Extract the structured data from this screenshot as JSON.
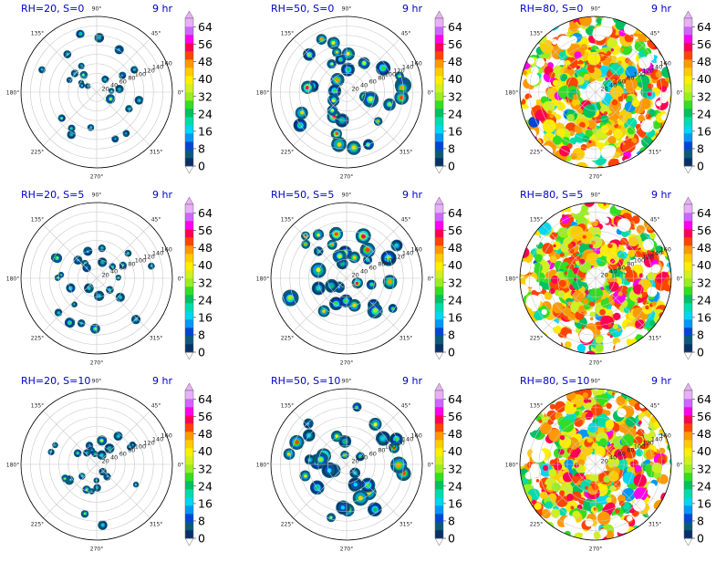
{
  "chart_data": {
    "type": "heatmap",
    "projection": "polar",
    "time_label": "9 hr",
    "angle_ticks": [
      "90°",
      "45°",
      "0°",
      "315°",
      "270°",
      "225°",
      "180°",
      "135°"
    ],
    "radial_ticks": [
      "20",
      "40",
      "60",
      "80",
      "100",
      "120",
      "140",
      "160"
    ],
    "rmax": 160,
    "colorbar": {
      "tick_labels": [
        "64",
        "56",
        "48",
        "40",
        "32",
        "24",
        "16",
        "8",
        "0"
      ],
      "levels": [
        0,
        4,
        8,
        12,
        16,
        20,
        24,
        28,
        32,
        36,
        40,
        44,
        48,
        52,
        56,
        60,
        64,
        68
      ],
      "colors": [
        "#08306b",
        "#0a5b78",
        "#0045d6",
        "#0098f5",
        "#00d7f0",
        "#00ddaa",
        "#00c060",
        "#33dd22",
        "#99ee22",
        "#d0f020",
        "#ffee00",
        "#ffcc00",
        "#ff9900",
        "#ff4400",
        "#ff0055",
        "#ff00ee",
        "#cc66ff",
        "#e8b0f8"
      ],
      "extend": "both"
    },
    "panels": [
      {
        "title": "RH=20, S=0",
        "rh": 20,
        "s": 0
      },
      {
        "title": "RH=50, S=0",
        "rh": 50,
        "s": 0
      },
      {
        "title": "RH=80, S=0",
        "rh": 80,
        "s": 0
      },
      {
        "title": "RH=20, S=5",
        "rh": 20,
        "s": 5
      },
      {
        "title": "RH=50, S=5",
        "rh": 50,
        "s": 5
      },
      {
        "title": "RH=80, S=5",
        "rh": 80,
        "s": 5
      },
      {
        "title": "RH=20, S=10",
        "rh": 20,
        "s": 10
      },
      {
        "title": "RH=50, S=10",
        "rh": 50,
        "s": 10
      },
      {
        "title": "RH=80, S=10",
        "rh": 80,
        "s": 10
      }
    ]
  }
}
